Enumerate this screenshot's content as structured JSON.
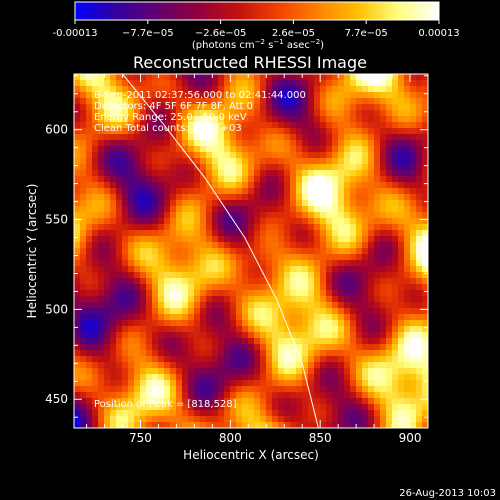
{
  "colorbar": {
    "tick_labels": [
      "-0.00013",
      "−7.7e−05",
      "−2.6e−05",
      "2.6e−05",
      "7.7e−05",
      "0.00013"
    ],
    "units_prefix": "(photons cm",
    "units_exp1": "−2",
    "units_mid": " s",
    "units_exp2": "−1",
    "units_mid2": " asec",
    "units_exp3": "−2",
    "units_suffix": ")"
  },
  "title": "Reconstructed RHESSI Image",
  "annotations": {
    "time_range": "8-Sep-2011 02:37:56.000 to 02:41:44.000",
    "detectors": "Detectors: 4F 5F 6F 7F 8F, Att 0",
    "energy": "Energy Range: 25.0 - 50.0 keV",
    "clean": "Clean    Total counts: 7.50E+03",
    "peak": "Position of Peak = [818,528]"
  },
  "footer_timestamp": "26-Aug-2013 10:03",
  "chart_data": {
    "type": "heatmap",
    "title": "Reconstructed RHESSI Image",
    "xlabel": "Heliocentric X (arcsec)",
    "ylabel": "Heliocentric Y (arcsec)",
    "xlim": [
      713,
      910
    ],
    "ylim": [
      434,
      631
    ],
    "x_ticks": [
      750,
      800,
      850,
      900
    ],
    "y_ticks": [
      450,
      500,
      550,
      600
    ],
    "color_range": [
      -0.00013,
      0.00013
    ],
    "colormap": [
      "#0000ff",
      "#3300a0",
      "#600070",
      "#900040",
      "#c01010",
      "#f04000",
      "#ff8000",
      "#ffc000",
      "#ffff80",
      "#ffffff"
    ],
    "peak_position": [
      818,
      528
    ],
    "limb_curve": {
      "x": [
        740,
        762,
        786,
        808,
        826,
        840,
        849
      ],
      "y": [
        631,
        604,
        573,
        540,
        505,
        470,
        434
      ]
    },
    "grid": false
  }
}
